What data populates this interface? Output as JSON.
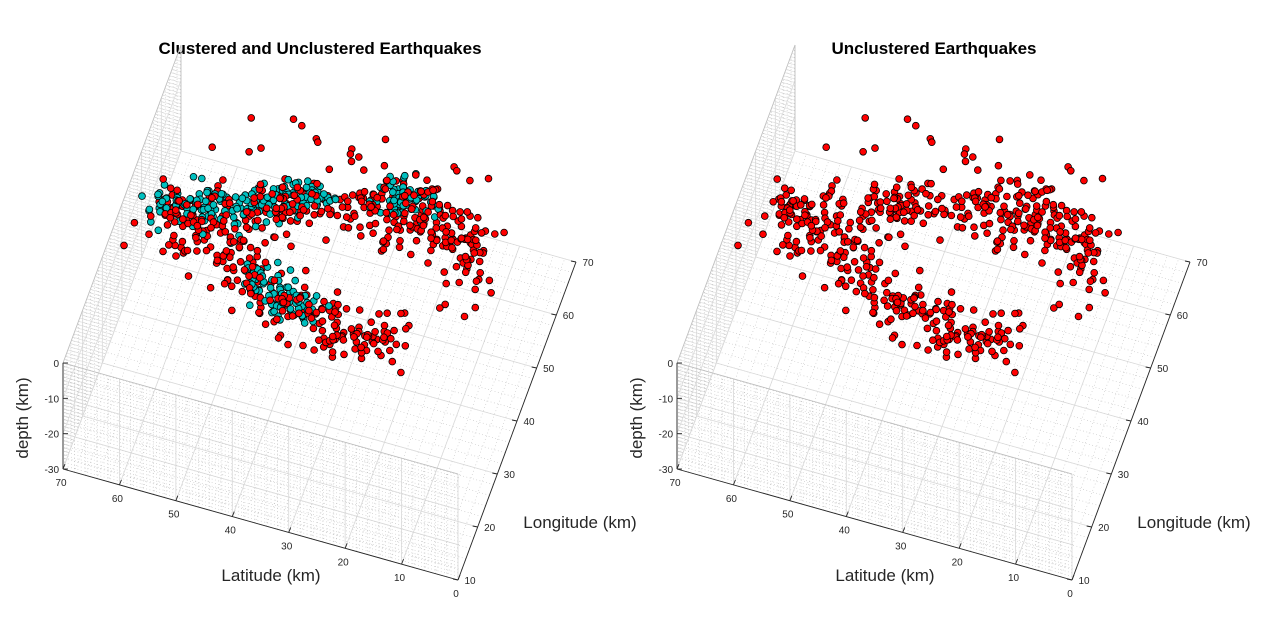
{
  "chart_data": [
    {
      "type": "scatter",
      "title": "Clustered and Unclustered Earthquakes",
      "xlabel": "Longitude (km)",
      "ylabel": "Latitude (km)",
      "zlabel": "depth (km)",
      "xlim": [
        10,
        70
      ],
      "ylim": [
        0,
        70
      ],
      "zlim": [
        -30,
        0
      ],
      "xticks": [
        "10",
        "20",
        "30",
        "40",
        "50",
        "60",
        "70"
      ],
      "yticks": [
        "0",
        "10",
        "20",
        "30",
        "40",
        "50",
        "60",
        "70"
      ],
      "zticks": [
        "-30",
        "-20",
        "-10",
        "0"
      ],
      "grid": true,
      "series": [
        {
          "color": "#ff0000",
          "group": "unclustered"
        },
        {
          "color": "#00c0c0",
          "group": "clustered"
        }
      ]
    },
    {
      "type": "scatter",
      "title": "Unclustered Earthquakes",
      "xlabel": "Longitude (km)",
      "ylabel": "Latitude (km)",
      "zlabel": "depth (km)",
      "xlim": [
        10,
        70
      ],
      "ylim": [
        0,
        70
      ],
      "zlim": [
        -30,
        0
      ],
      "xticks": [
        "10",
        "20",
        "30",
        "40",
        "50",
        "60",
        "70"
      ],
      "yticks": [
        "0",
        "10",
        "20",
        "30",
        "40",
        "50",
        "60",
        "70"
      ],
      "zticks": [
        "-30",
        "-20",
        "-10",
        "0"
      ],
      "grid": true,
      "series": [
        {
          "color": "#ff0000",
          "group": "unclustered"
        }
      ]
    }
  ]
}
